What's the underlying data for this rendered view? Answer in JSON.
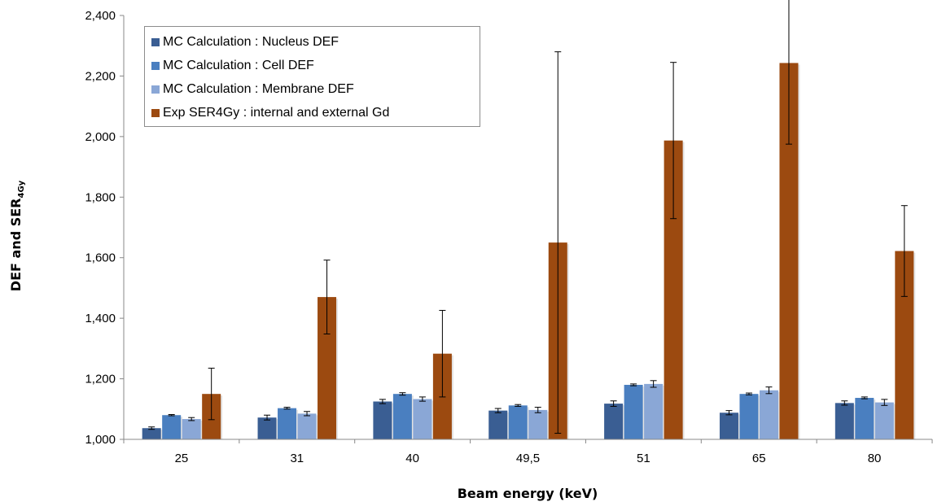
{
  "chart_data": {
    "type": "bar",
    "categories": [
      "25",
      "31",
      "40",
      "49,5",
      "51",
      "65",
      "80"
    ],
    "series": [
      {
        "name": "MC Calculation : Nucleus DEF",
        "color": "#3a5e93",
        "values": [
          1.037,
          1.072,
          1.125,
          1.095,
          1.118,
          1.088,
          1.12
        ],
        "errors": [
          0.004,
          0.008,
          0.007,
          0.007,
          0.009,
          0.007,
          0.007
        ]
      },
      {
        "name": "MC Calculation : Cell DEF",
        "color": "#4a7fc0",
        "values": [
          1.08,
          1.103,
          1.15,
          1.112,
          1.18,
          1.15,
          1.137
        ],
        "errors": [
          0.002,
          0.003,
          0.004,
          0.003,
          0.003,
          0.003,
          0.003
        ]
      },
      {
        "name": "MC Calculation : Membrane DEF",
        "color": "#8aa7d6",
        "values": [
          1.067,
          1.085,
          1.133,
          1.097,
          1.183,
          1.162,
          1.122
        ],
        "errors": [
          0.005,
          0.007,
          0.007,
          0.009,
          0.011,
          0.011,
          0.01
        ]
      },
      {
        "name": "Exp SER4Gy : internal and external Gd",
        "color": "#9c4a10",
        "values": [
          1.15,
          1.47,
          1.283,
          1.65,
          1.987,
          2.243,
          1.622
        ],
        "errors": [
          0.085,
          0.122,
          0.143,
          0.63,
          0.258,
          0.268,
          0.15
        ]
      }
    ],
    "y_ticks": [
      "1,000",
      "1,200",
      "1,400",
      "1,600",
      "1,800",
      "2,000",
      "2,200",
      "2,400"
    ],
    "ylim": [
      1.0,
      2.4
    ],
    "xlabel": "Beam energy (keV)",
    "ylabel_main": "DEF and SER",
    "ylabel_sub": "4Gy",
    "legend_position": "top-left",
    "grid": false
  }
}
